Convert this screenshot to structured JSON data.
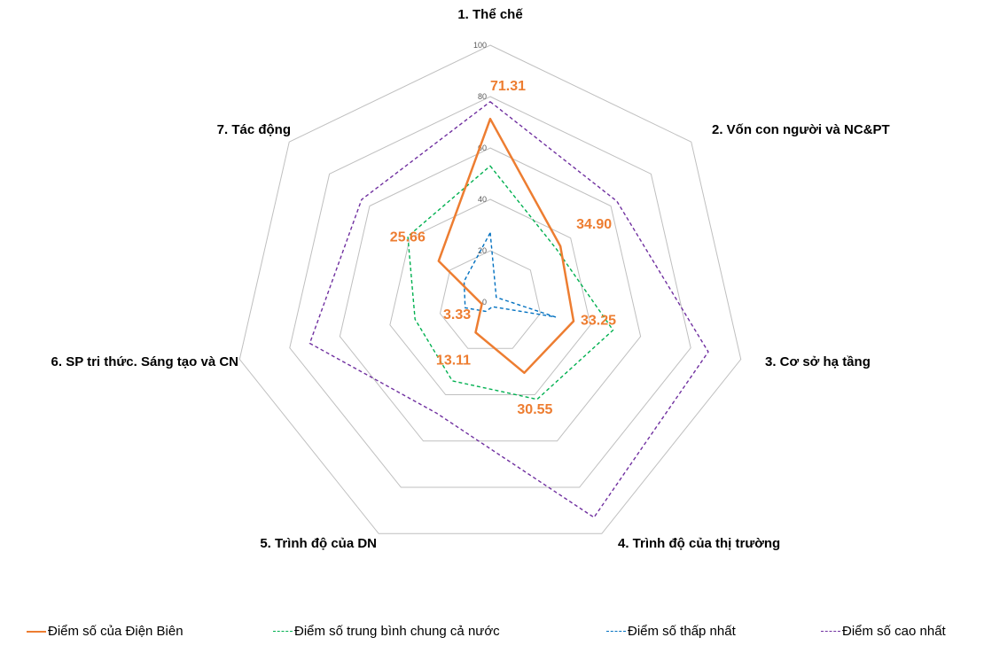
{
  "chart_data": {
    "type": "radar",
    "axes": [
      "1. Thể chế",
      "2. Vốn con người và NC&PT",
      "3. Cơ sở hạ tầng",
      "4. Trình độ của thị trường",
      "5. Trình độ của DN",
      "6. SP tri thức. Sáng tạo và CN",
      "7. Tác động"
    ],
    "rlim": [
      0,
      100
    ],
    "ticks": [
      "0",
      "20",
      "40",
      "60",
      "80",
      "100"
    ],
    "tick_values": [
      0,
      20,
      40,
      60,
      80,
      100
    ],
    "grid": true,
    "legend_position": "bottom",
    "series": [
      {
        "name": "Điểm số của Điện Biên",
        "color": "#ED7D31",
        "style": "solid",
        "values": [
          71.31,
          34.9,
          33.25,
          30.55,
          13.11,
          3.33,
          25.66
        ],
        "labels": [
          "71.31",
          "34.90",
          "33.25",
          "30.55",
          "13.11",
          "3.33",
          "25.66"
        ]
      },
      {
        "name": "Điểm số trung bình chung cả nước",
        "color": "#00B050",
        "style": "dashed",
        "values": [
          53,
          33,
          49,
          42,
          34,
          30,
          41
        ]
      },
      {
        "name": "Điểm số thấp nhất",
        "color": "#0070C0",
        "style": "dashed",
        "values": [
          27,
          3,
          26,
          2,
          4,
          10,
          13
        ]
      },
      {
        "name": "Điểm số cao nhất",
        "color": "#7030A0",
        "style": "dashed",
        "values": [
          78,
          63,
          87,
          93,
          48,
          72,
          64
        ]
      }
    ]
  }
}
